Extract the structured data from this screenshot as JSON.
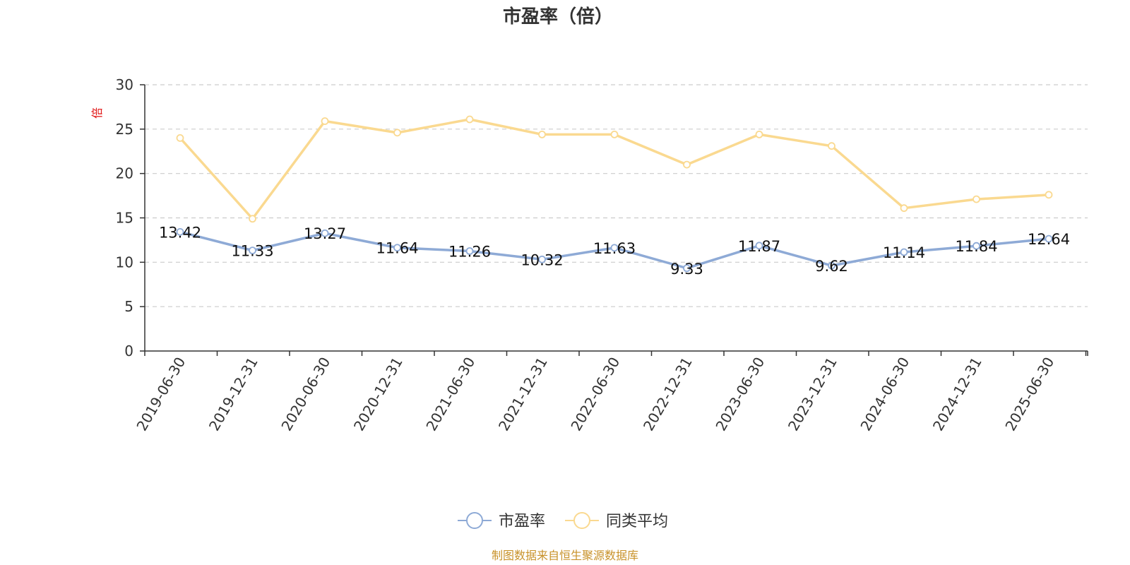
{
  "chart_data": {
    "type": "line",
    "title": "市盈率（倍）",
    "ylabel": "倍",
    "xlabel": "",
    "ylim": [
      0,
      30
    ],
    "yticks": [
      0,
      5,
      10,
      15,
      20,
      25,
      30
    ],
    "grid": true,
    "legend_position": "bottom",
    "categories": [
      "2019-06-30",
      "2019-12-31",
      "2020-06-30",
      "2020-12-31",
      "2021-06-30",
      "2021-12-31",
      "2022-06-30",
      "2022-12-31",
      "2023-06-30",
      "2023-12-31",
      "2024-06-30",
      "2024-12-31",
      "2025-06-30"
    ],
    "series": [
      {
        "name": "市盈率",
        "color": "#8eaad6",
        "values": [
          13.42,
          11.33,
          13.27,
          11.64,
          11.26,
          10.32,
          11.63,
          9.33,
          11.87,
          9.62,
          11.14,
          11.84,
          12.64
        ],
        "labels": [
          "13.42",
          "11.33",
          "13.27",
          "11.64",
          "11.26",
          "10.32",
          "11.63",
          "9.33",
          "11.87",
          "9.62",
          "11.14",
          "11.84",
          "12.64"
        ]
      },
      {
        "name": "同类平均",
        "color": "#fad990",
        "values": [
          24.0,
          14.9,
          25.9,
          24.6,
          26.1,
          24.4,
          24.4,
          21.0,
          24.4,
          23.1,
          16.1,
          17.1,
          17.6
        ]
      }
    ],
    "source": "制图数据来自恒生聚源数据库"
  }
}
